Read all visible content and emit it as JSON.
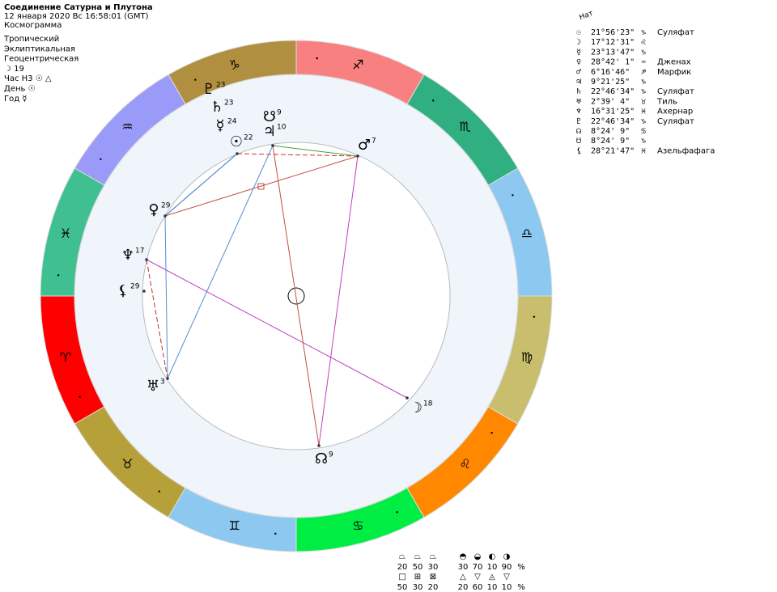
{
  "header": {
    "title": "Соединение Сатурна и Плутона",
    "datetime": "12 января 2020  Вс  16:58:01 (GMT)",
    "chart_kind": "Космограмма",
    "settings": [
      "Тропический",
      "Эклиптикальная",
      "Геоцентрическая",
      "☽ 19",
      "Час Н3 ☉ △",
      "День ☉",
      "Год ☿"
    ]
  },
  "zodiac": [
    {
      "glyph": "♈︎",
      "color": "#ff0000"
    },
    {
      "glyph": "♉︎",
      "color": "#b5a03a"
    },
    {
      "glyph": "♊︎",
      "color": "#8cc8f0"
    },
    {
      "glyph": "♋︎",
      "color": "#00ee44"
    },
    {
      "glyph": "♌︎",
      "color": "#ff8800"
    },
    {
      "glyph": "♍︎",
      "color": "#c8be6e"
    },
    {
      "glyph": "♎︎",
      "color": "#8cc8f0"
    },
    {
      "glyph": "♏︎",
      "color": "#30b080"
    },
    {
      "glyph": "♐︎",
      "color": "#f88080"
    },
    {
      "glyph": "♑︎",
      "color": "#b09040"
    },
    {
      "glyph": "♒︎",
      "color": "#9a9af8"
    },
    {
      "glyph": "♓︎",
      "color": "#40c090"
    }
  ],
  "wheel_points": [
    {
      "glyph": "♇",
      "degree": "23"
    },
    {
      "glyph": "♄",
      "degree": "23"
    },
    {
      "glyph": "☿",
      "degree": "24"
    },
    {
      "glyph": "☋",
      "degree": "9"
    },
    {
      "glyph": "♃",
      "degree": "10"
    },
    {
      "glyph": "☉",
      "degree": "22"
    },
    {
      "glyph": "♂",
      "degree": "7"
    },
    {
      "glyph": "♀",
      "degree": "29"
    },
    {
      "glyph": "♆",
      "degree": "17"
    },
    {
      "glyph": "⚸",
      "degree": "29"
    },
    {
      "glyph": "♅",
      "degree": "3"
    },
    {
      "glyph": "☽",
      "degree": "18"
    },
    {
      "glyph": "☊",
      "degree": "9"
    }
  ],
  "table": {
    "label": "Нат",
    "rows": [
      {
        "glyph": "☉",
        "position": "21°56'23\"",
        "sign": "♑︎",
        "star": "Суляфат"
      },
      {
        "glyph": "☽",
        "position": "17°12'31\"",
        "sign": "♌︎"
      },
      {
        "glyph": "☿",
        "position": "23°13'47\"",
        "sign": "♑︎"
      },
      {
        "glyph": "♀",
        "position": "28°42' 1\"",
        "sign": "♒︎",
        "star": "Дженах"
      },
      {
        "glyph": "♂",
        "position": " 6°16'46\"",
        "sign": "♐︎",
        "star": "Марфик"
      },
      {
        "glyph": "♃",
        "position": " 9°21'25\"",
        "sign": "♑︎"
      },
      {
        "glyph": "♄",
        "position": "22°46'34\"",
        "sign": "♑︎",
        "star": "Суляфат"
      },
      {
        "glyph": "♅",
        "position": " 2°39' 4\"",
        "sign": "♉︎",
        "star": "Тиль"
      },
      {
        "glyph": "♆",
        "position": "16°31'25\"",
        "sign": "♓︎",
        "star": "Ахернар"
      },
      {
        "glyph": "♇",
        "position": "22°46'34\"",
        "sign": "♑︎",
        "star": "Суляфат"
      },
      {
        "glyph": "☊",
        "position": " 8°24' 9\"",
        "sign": "♋︎"
      },
      {
        "glyph": "☋",
        "position": " 8°24' 9\"",
        "sign": "♑︎"
      },
      {
        "glyph": "⚸",
        "position": "28°21'47\"",
        "sign": "♓︎",
        "star": "Азельфафага"
      }
    ]
  },
  "legend": {
    "left": [
      [
        "⏢",
        "⏢",
        "⏢"
      ],
      [
        "20",
        "50",
        "30"
      ],
      [
        "□",
        "⊞",
        "⊠"
      ],
      [
        "50",
        "30",
        "20"
      ]
    ],
    "right": [
      [
        "◓",
        "◒",
        "◐",
        "◑"
      ],
      [
        "30",
        "70",
        "10",
        "90",
        "%"
      ],
      [
        "△",
        "▽",
        "◬",
        "▽"
      ],
      [
        "20",
        "60",
        "10",
        "10",
        "%"
      ]
    ]
  }
}
